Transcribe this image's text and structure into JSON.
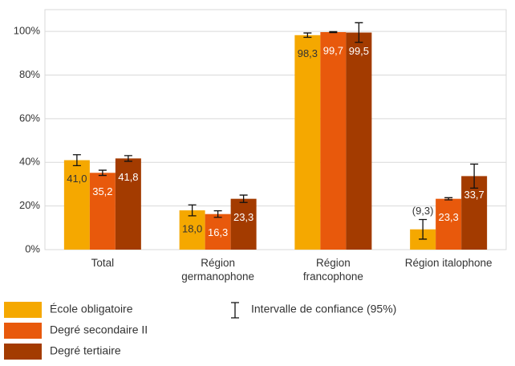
{
  "chart_data": {
    "type": "bar",
    "categories": [
      "Total",
      "Région germanophone",
      "Région francophone",
      "Région italophone"
    ],
    "series": [
      {
        "name": "École obligatoire",
        "color": "#f5a800",
        "label_color": "#333333",
        "values": [
          41.0,
          18.0,
          98.3,
          9.3
        ],
        "value_labels": [
          "41,0",
          "18,0",
          "98,3",
          "(9,3)"
        ],
        "errors": [
          2.5,
          2.5,
          1.0,
          4.5
        ]
      },
      {
        "name": "Degré secondaire II",
        "color": "#e8590c",
        "label_color": "#ffffff",
        "values": [
          35.2,
          16.3,
          99.7,
          23.3
        ],
        "value_labels": [
          "35,2",
          "16,3",
          "99,7",
          "23,3"
        ],
        "errors": [
          1.2,
          1.5,
          0.2,
          0.5
        ]
      },
      {
        "name": "Degré tertiaire",
        "color": "#a33b00",
        "label_color": "#ffffff",
        "values": [
          41.8,
          23.3,
          99.5,
          33.7
        ],
        "value_labels": [
          "41,8",
          "23,3",
          "99,5",
          "33,7"
        ],
        "errors": [
          1.3,
          1.7,
          4.5,
          5.5
        ]
      }
    ],
    "error_legend": "Intervalle de confiance (95%)",
    "ylim": [
      0,
      110
    ],
    "yticks": [
      {
        "value": 0,
        "label": "0%"
      },
      {
        "value": 20,
        "label": "20%"
      },
      {
        "value": 40,
        "label": "40%"
      },
      {
        "value": 60,
        "label": "60%"
      },
      {
        "value": 80,
        "label": "80%"
      },
      {
        "value": 100,
        "label": "100%"
      }
    ],
    "grid": true
  }
}
